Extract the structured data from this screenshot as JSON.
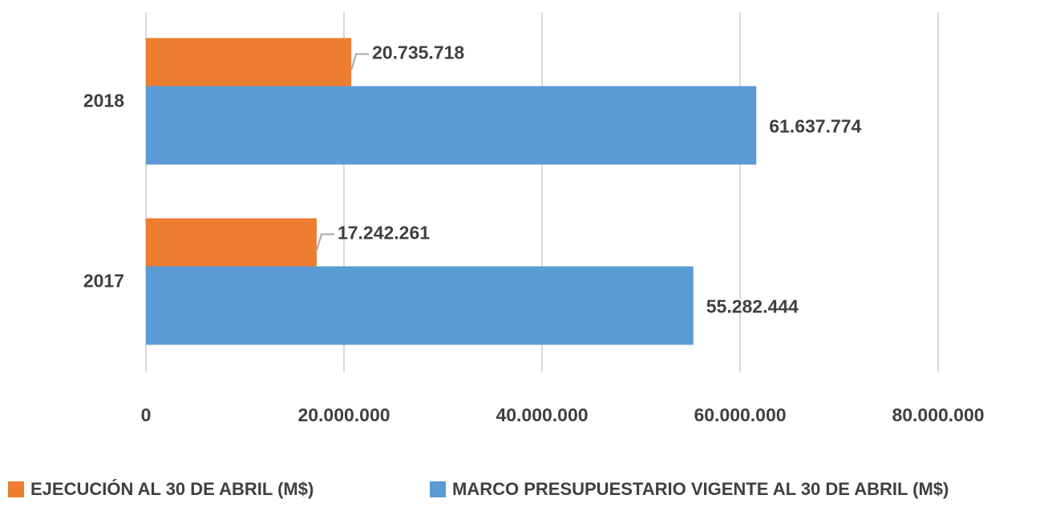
{
  "chart_data": {
    "type": "hbar",
    "categories": [
      "2017",
      "2018"
    ],
    "series": [
      {
        "name": "EJECUCIÓN  AL 30 DE ABRIL (M$)",
        "color": "#ed7d31",
        "values": [
          17242261,
          20735718
        ],
        "value_labels": [
          "17.242.261",
          "20.735.718"
        ]
      },
      {
        "name": "MARCO PRESUPUESTARIO VIGENTE AL 30 DE ABRIL (M$)",
        "color": "#5b9bd5",
        "values": [
          55282444,
          61637774
        ],
        "value_labels": [
          "55.282.444",
          "61.637.774"
        ]
      }
    ],
    "xlim": [
      0,
      80000000
    ],
    "xticks": [
      0,
      {
        "value": 20000000,
        "label": "20.000.000"
      },
      {
        "value": 40000000,
        "label": "40.000.000"
      },
      {
        "value": 60000000,
        "label": "60.000.000"
      },
      {
        "value": 80000000,
        "label": "80.000.000"
      }
    ],
    "grid": true,
    "legend": "bottom"
  }
}
